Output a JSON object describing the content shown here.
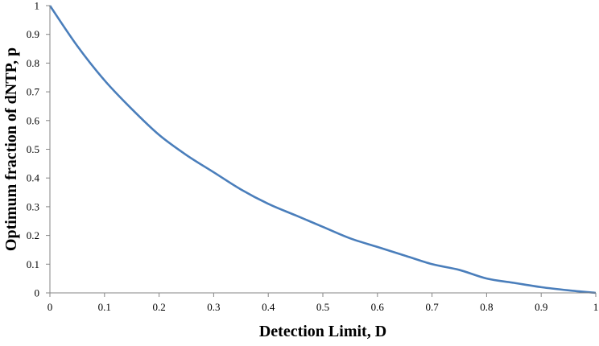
{
  "chart_data": {
    "type": "line",
    "title": "",
    "xlabel": "Detection Limit, D",
    "ylabel": "Optimum fraction of dNTP, p",
    "xlim": [
      0,
      1
    ],
    "ylim": [
      0,
      1
    ],
    "grid": false,
    "x_ticks": [
      "0",
      "0.1",
      "0.2",
      "0.3",
      "0.4",
      "0.5",
      "0.6",
      "0.7",
      "0.8",
      "0.9",
      "1"
    ],
    "y_ticks": [
      "0",
      "0.1",
      "0.2",
      "0.3",
      "0.4",
      "0.5",
      "0.6",
      "0.7",
      "0.8",
      "0.9",
      "1"
    ],
    "series": [
      {
        "color": "#4a7ebb",
        "x": [
          0,
          0.05,
          0.1,
          0.15,
          0.2,
          0.25,
          0.3,
          0.35,
          0.4,
          0.45,
          0.5,
          0.55,
          0.6,
          0.65,
          0.7,
          0.75,
          0.8,
          0.85,
          0.9,
          0.95,
          1
        ],
        "y": [
          1,
          0.86,
          0.74,
          0.64,
          0.55,
          0.48,
          0.42,
          0.36,
          0.31,
          0.27,
          0.23,
          0.19,
          0.16,
          0.13,
          0.1,
          0.08,
          0.05,
          0.035,
          0.02,
          0.009,
          0
        ]
      }
    ]
  }
}
